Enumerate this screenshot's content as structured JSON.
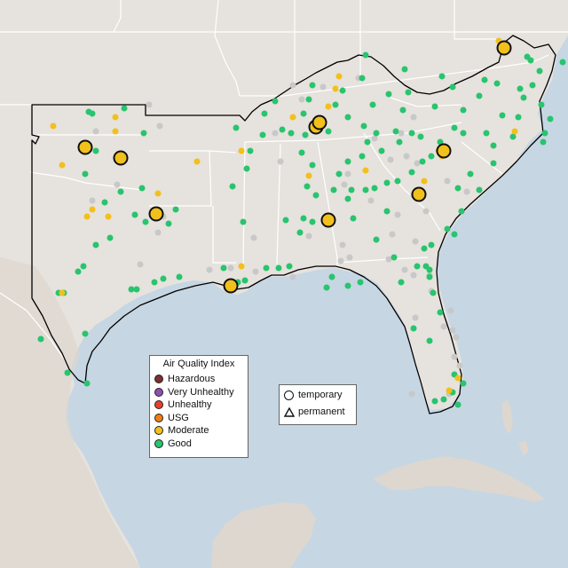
{
  "legend": {
    "title": "Air Quality Index",
    "items": [
      {
        "label": "Hazardous",
        "color": "#7e2e2e"
      },
      {
        "label": "Very Unhealthy",
        "color": "#8f4fb0"
      },
      {
        "label": "Unhealthy",
        "color": "#e8402c"
      },
      {
        "label": "USG",
        "color": "#f07d15"
      },
      {
        "label": "Moderate",
        "color": "#f2c01a"
      },
      {
        "label": "Good",
        "color": "#28c46e"
      }
    ]
  },
  "monitor_types": [
    {
      "label": "temporary",
      "shape": "circle"
    },
    {
      "label": "permanent",
      "shape": "triangle"
    }
  ],
  "colors": {
    "ocean": "#c6d6e3",
    "land": "#e6e2dd",
    "borders": "#ffffff",
    "region_outline": "#000000",
    "no_data": "#c8c8c8",
    "good": "#28c46e",
    "moderate": "#f2c01a"
  }
}
